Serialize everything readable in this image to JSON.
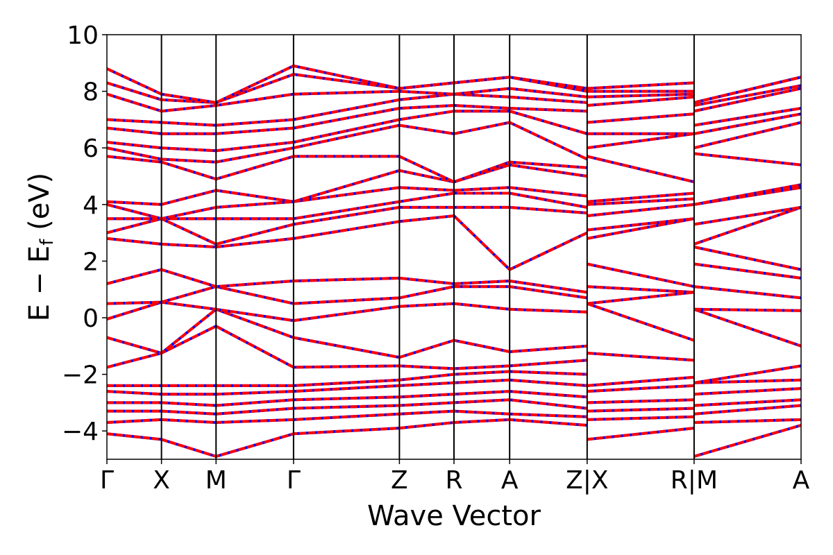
{
  "chart_data": {
    "type": "line",
    "xlabel": "Wave Vector",
    "ylabel_main": "E − E",
    "ylabel_sub": "f",
    "ylabel_unit": " (eV)",
    "ylim": [
      -5,
      10
    ],
    "yticks": [
      -4,
      -2,
      0,
      2,
      4,
      6,
      8,
      10
    ],
    "ytick_labels": [
      "−4",
      "−2",
      "0",
      "2",
      "4",
      "6",
      "8",
      "10"
    ],
    "grid": false,
    "colors": {
      "series_a": "#0000ff",
      "series_b": "#ff0000",
      "frame": "#000000"
    },
    "kpath": [
      {
        "label": "Γ",
        "x": 0.0
      },
      {
        "label": "X",
        "x": 0.5
      },
      {
        "label": "M",
        "x": 1.0
      },
      {
        "label": "Γ",
        "x": 1.71
      },
      {
        "label": "Z",
        "x": 2.68
      },
      {
        "label": "R",
        "x": 3.18
      },
      {
        "label": "A",
        "x": 3.69
      },
      {
        "label": "Z|X",
        "x": 4.4
      },
      {
        "label": "R|M",
        "x": 5.38
      },
      {
        "label": "A",
        "x": 6.36
      }
    ],
    "bands": [
      [
        [
          0,
          -4.1
        ],
        [
          0.5,
          -4.3
        ],
        [
          1.0,
          -4.9
        ],
        [
          1.71,
          -4.1
        ],
        [
          2.68,
          -3.9
        ],
        [
          3.18,
          -3.7
        ],
        [
          3.69,
          -3.6
        ],
        [
          4.4,
          -3.8
        ],
        [
          4.4,
          -4.3
        ],
        [
          5.38,
          -3.9
        ],
        [
          5.38,
          -4.9
        ],
        [
          6.36,
          -3.8
        ]
      ],
      [
        [
          0,
          -3.7
        ],
        [
          0.5,
          -3.6
        ],
        [
          1.0,
          -3.7
        ],
        [
          1.71,
          -3.6
        ],
        [
          2.68,
          -3.4
        ],
        [
          3.18,
          -3.3
        ],
        [
          3.69,
          -3.4
        ],
        [
          4.4,
          -3.5
        ],
        [
          4.4,
          -3.6
        ],
        [
          5.38,
          -3.5
        ],
        [
          5.38,
          -3.7
        ],
        [
          6.36,
          -3.6
        ]
      ],
      [
        [
          0,
          -3.3
        ],
        [
          0.5,
          -3.3
        ],
        [
          1.0,
          -3.4
        ],
        [
          1.71,
          -3.2
        ],
        [
          2.68,
          -3.1
        ],
        [
          3.18,
          -3.0
        ],
        [
          3.69,
          -2.9
        ],
        [
          4.4,
          -3.2
        ],
        [
          4.4,
          -3.3
        ],
        [
          5.38,
          -3.2
        ],
        [
          5.38,
          -3.4
        ],
        [
          6.36,
          -3.1
        ]
      ],
      [
        [
          0,
          -3.0
        ],
        [
          0.5,
          -3.0
        ],
        [
          1.0,
          -3.1
        ],
        [
          1.71,
          -2.9
        ],
        [
          2.68,
          -2.8
        ],
        [
          3.18,
          -2.7
        ],
        [
          3.69,
          -2.6
        ],
        [
          4.4,
          -2.8
        ],
        [
          4.4,
          -3.0
        ],
        [
          5.38,
          -2.9
        ],
        [
          5.38,
          -3.1
        ],
        [
          6.36,
          -2.9
        ]
      ],
      [
        [
          0,
          -2.6
        ],
        [
          0.5,
          -2.7
        ],
        [
          1.0,
          -2.7
        ],
        [
          1.71,
          -2.6
        ],
        [
          2.68,
          -2.4
        ],
        [
          3.18,
          -2.3
        ],
        [
          3.69,
          -2.2
        ],
        [
          4.4,
          -2.4
        ],
        [
          4.4,
          -2.6
        ],
        [
          5.38,
          -2.4
        ],
        [
          5.38,
          -2.7
        ],
        [
          6.36,
          -2.5
        ]
      ],
      [
        [
          0,
          -2.4
        ],
        [
          0.5,
          -2.4
        ],
        [
          1.0,
          -2.4
        ],
        [
          1.71,
          -2.4
        ],
        [
          2.68,
          -2.2
        ],
        [
          3.18,
          -2.0
        ],
        [
          3.69,
          -1.9
        ],
        [
          4.4,
          -2.0
        ],
        [
          4.4,
          -2.4
        ],
        [
          5.38,
          -2.1
        ],
        [
          5.38,
          -2.3
        ],
        [
          6.36,
          -2.2
        ]
      ],
      [
        [
          0,
          -1.75
        ],
        [
          0.5,
          -1.25
        ],
        [
          1.0,
          -0.3
        ],
        [
          1.71,
          -1.75
        ],
        [
          2.68,
          -1.7
        ],
        [
          3.18,
          -1.8
        ],
        [
          3.69,
          -1.7
        ],
        [
          4.4,
          -1.5
        ],
        [
          4.4,
          -1.25
        ],
        [
          5.38,
          -1.5
        ],
        [
          5.38,
          -2.3
        ],
        [
          6.36,
          -1.7
        ]
      ],
      [
        [
          0,
          -0.7
        ],
        [
          0.5,
          -1.25
        ],
        [
          1.0,
          0.3
        ],
        [
          1.71,
          -0.7
        ],
        [
          2.68,
          -1.4
        ],
        [
          3.18,
          -0.8
        ],
        [
          3.69,
          -1.2
        ],
        [
          4.4,
          -1.0
        ],
        [
          4.4,
          0.5
        ],
        [
          5.38,
          -0.8
        ],
        [
          5.38,
          0.3
        ],
        [
          6.36,
          -1.0
        ]
      ],
      [
        [
          0,
          -0.05
        ],
        [
          0.5,
          0.55
        ],
        [
          1.0,
          0.3
        ],
        [
          1.71,
          -0.1
        ],
        [
          2.68,
          0.4
        ],
        [
          3.18,
          0.5
        ],
        [
          3.69,
          0.3
        ],
        [
          4.4,
          0.2
        ],
        [
          4.4,
          0.5
        ],
        [
          5.38,
          0.9
        ],
        [
          5.38,
          0.3
        ],
        [
          6.36,
          0.25
        ]
      ],
      [
        [
          0,
          0.5
        ],
        [
          0.5,
          0.55
        ],
        [
          1.0,
          1.1
        ],
        [
          1.71,
          0.5
        ],
        [
          2.68,
          0.7
        ],
        [
          3.18,
          1.1
        ],
        [
          3.69,
          1.1
        ],
        [
          4.4,
          0.7
        ],
        [
          4.4,
          1.1
        ],
        [
          5.38,
          0.9
        ],
        [
          5.38,
          1.1
        ],
        [
          6.36,
          0.7
        ]
      ],
      [
        [
          0,
          1.2
        ],
        [
          0.5,
          1.7
        ],
        [
          1.0,
          1.1
        ],
        [
          1.71,
          1.3
        ],
        [
          2.68,
          1.4
        ],
        [
          3.18,
          1.2
        ],
        [
          3.69,
          1.3
        ],
        [
          4.4,
          0.9
        ],
        [
          4.4,
          1.9
        ],
        [
          5.38,
          1.1
        ],
        [
          5.38,
          1.9
        ],
        [
          6.36,
          1.4
        ]
      ],
      [
        [
          0,
          2.8
        ],
        [
          0.5,
          2.6
        ],
        [
          1.0,
          2.5
        ],
        [
          1.71,
          2.8
        ],
        [
          2.68,
          3.4
        ],
        [
          3.18,
          3.6
        ],
        [
          3.69,
          1.7
        ],
        [
          4.4,
          3.0
        ],
        [
          4.4,
          2.8
        ],
        [
          5.38,
          3.5
        ],
        [
          5.38,
          2.5
        ],
        [
          6.36,
          1.7
        ]
      ],
      [
        [
          0,
          3.0
        ],
        [
          0.5,
          3.5
        ],
        [
          1.0,
          2.6
        ],
        [
          1.71,
          3.3
        ],
        [
          2.68,
          3.9
        ],
        [
          3.18,
          3.9
        ],
        [
          3.69,
          3.9
        ],
        [
          4.4,
          3.7
        ],
        [
          4.4,
          3.1
        ],
        [
          5.38,
          3.5
        ],
        [
          5.38,
          2.6
        ],
        [
          6.36,
          3.9
        ]
      ],
      [
        [
          0,
          3.5
        ],
        [
          0.5,
          3.5
        ],
        [
          1.0,
          3.5
        ],
        [
          1.71,
          3.5
        ],
        [
          2.68,
          4.1
        ],
        [
          3.18,
          4.4
        ],
        [
          3.69,
          4.4
        ],
        [
          4.4,
          3.9
        ],
        [
          4.4,
          3.6
        ],
        [
          5.38,
          4.0
        ],
        [
          5.38,
          3.3
        ],
        [
          6.36,
          3.9
        ]
      ],
      [
        [
          0,
          4.0
        ],
        [
          0.5,
          3.5
        ],
        [
          1.0,
          3.9
        ],
        [
          1.71,
          4.1
        ],
        [
          2.68,
          4.6
        ],
        [
          3.18,
          4.5
        ],
        [
          3.69,
          4.6
        ],
        [
          4.4,
          4.3
        ],
        [
          4.4,
          4.0
        ],
        [
          5.38,
          4.2
        ],
        [
          5.38,
          4.0
        ],
        [
          6.36,
          4.6
        ]
      ],
      [
        [
          0,
          4.1
        ],
        [
          0.5,
          4.0
        ],
        [
          1.0,
          4.5
        ],
        [
          1.71,
          4.1
        ],
        [
          2.68,
          5.2
        ],
        [
          3.18,
          4.8
        ],
        [
          3.69,
          5.4
        ],
        [
          4.4,
          5.0
        ],
        [
          4.4,
          4.1
        ],
        [
          5.38,
          4.4
        ],
        [
          5.38,
          4.0
        ],
        [
          6.36,
          4.7
        ]
      ],
      [
        [
          0,
          5.7
        ],
        [
          0.5,
          5.5
        ],
        [
          1.0,
          4.9
        ],
        [
          1.71,
          5.7
        ],
        [
          2.68,
          5.7
        ],
        [
          3.18,
          4.8
        ],
        [
          3.69,
          5.5
        ],
        [
          4.4,
          5.3
        ],
        [
          4.4,
          5.7
        ],
        [
          5.38,
          4.8
        ],
        [
          5.38,
          5.8
        ],
        [
          6.36,
          5.4
        ]
      ],
      [
        [
          0,
          6.0
        ],
        [
          0.5,
          5.6
        ],
        [
          1.0,
          5.5
        ],
        [
          1.71,
          6.0
        ],
        [
          2.68,
          6.8
        ],
        [
          3.18,
          6.5
        ],
        [
          3.69,
          6.9
        ],
        [
          4.4,
          5.6
        ],
        [
          4.4,
          6.0
        ],
        [
          5.38,
          6.5
        ],
        [
          5.38,
          6.0
        ],
        [
          6.36,
          6.9
        ]
      ],
      [
        [
          0,
          6.2
        ],
        [
          0.5,
          6.0
        ],
        [
          1.0,
          5.9
        ],
        [
          1.71,
          6.2
        ],
        [
          2.68,
          7.0
        ],
        [
          3.18,
          7.3
        ],
        [
          3.69,
          7.3
        ],
        [
          4.4,
          6.5
        ],
        [
          4.4,
          6.5
        ],
        [
          5.38,
          6.5
        ],
        [
          5.38,
          6.5
        ],
        [
          6.36,
          7.2
        ]
      ],
      [
        [
          0,
          6.7
        ],
        [
          0.5,
          6.5
        ],
        [
          1.0,
          6.5
        ],
        [
          1.71,
          6.7
        ],
        [
          2.68,
          7.4
        ],
        [
          3.18,
          7.5
        ],
        [
          3.69,
          7.4
        ],
        [
          4.4,
          7.3
        ],
        [
          4.4,
          6.9
        ],
        [
          5.38,
          7.2
        ],
        [
          5.38,
          6.8
        ],
        [
          6.36,
          7.4
        ]
      ],
      [
        [
          0,
          7.0
        ],
        [
          0.5,
          6.9
        ],
        [
          1.0,
          6.8
        ],
        [
          1.71,
          7.0
        ],
        [
          2.68,
          7.7
        ],
        [
          3.18,
          7.9
        ],
        [
          3.69,
          7.8
        ],
        [
          4.4,
          7.6
        ],
        [
          4.4,
          7.5
        ],
        [
          5.38,
          7.8
        ],
        [
          5.38,
          7.3
        ],
        [
          6.36,
          8.1
        ]
      ],
      [
        [
          0,
          7.9
        ],
        [
          0.5,
          7.3
        ],
        [
          1.0,
          7.5
        ],
        [
          1.71,
          7.9
        ],
        [
          2.68,
          8.0
        ],
        [
          3.18,
          7.9
        ],
        [
          3.69,
          8.1
        ],
        [
          4.4,
          7.8
        ],
        [
          4.4,
          7.8
        ],
        [
          5.38,
          7.9
        ],
        [
          5.38,
          7.5
        ],
        [
          6.36,
          8.2
        ]
      ],
      [
        [
          0,
          8.3
        ],
        [
          0.5,
          7.7
        ],
        [
          1.0,
          7.6
        ],
        [
          1.71,
          8.6
        ],
        [
          2.68,
          8.1
        ],
        [
          3.18,
          8.3
        ],
        [
          3.69,
          8.5
        ],
        [
          4.4,
          8.0
        ],
        [
          4.4,
          8.0
        ],
        [
          5.38,
          8.0
        ],
        [
          5.38,
          7.6
        ],
        [
          6.36,
          8.5
        ]
      ],
      [
        [
          0,
          8.8
        ],
        [
          0.5,
          7.9
        ],
        [
          1.0,
          7.6
        ],
        [
          1.71,
          8.9
        ],
        [
          2.68,
          8.1
        ],
        [
          3.18,
          8.3
        ],
        [
          3.69,
          8.5
        ],
        [
          4.4,
          8.1
        ],
        [
          4.4,
          8.1
        ],
        [
          5.38,
          8.3
        ],
        [
          5.38,
          7.6
        ],
        [
          6.36,
          8.5
        ]
      ]
    ]
  }
}
